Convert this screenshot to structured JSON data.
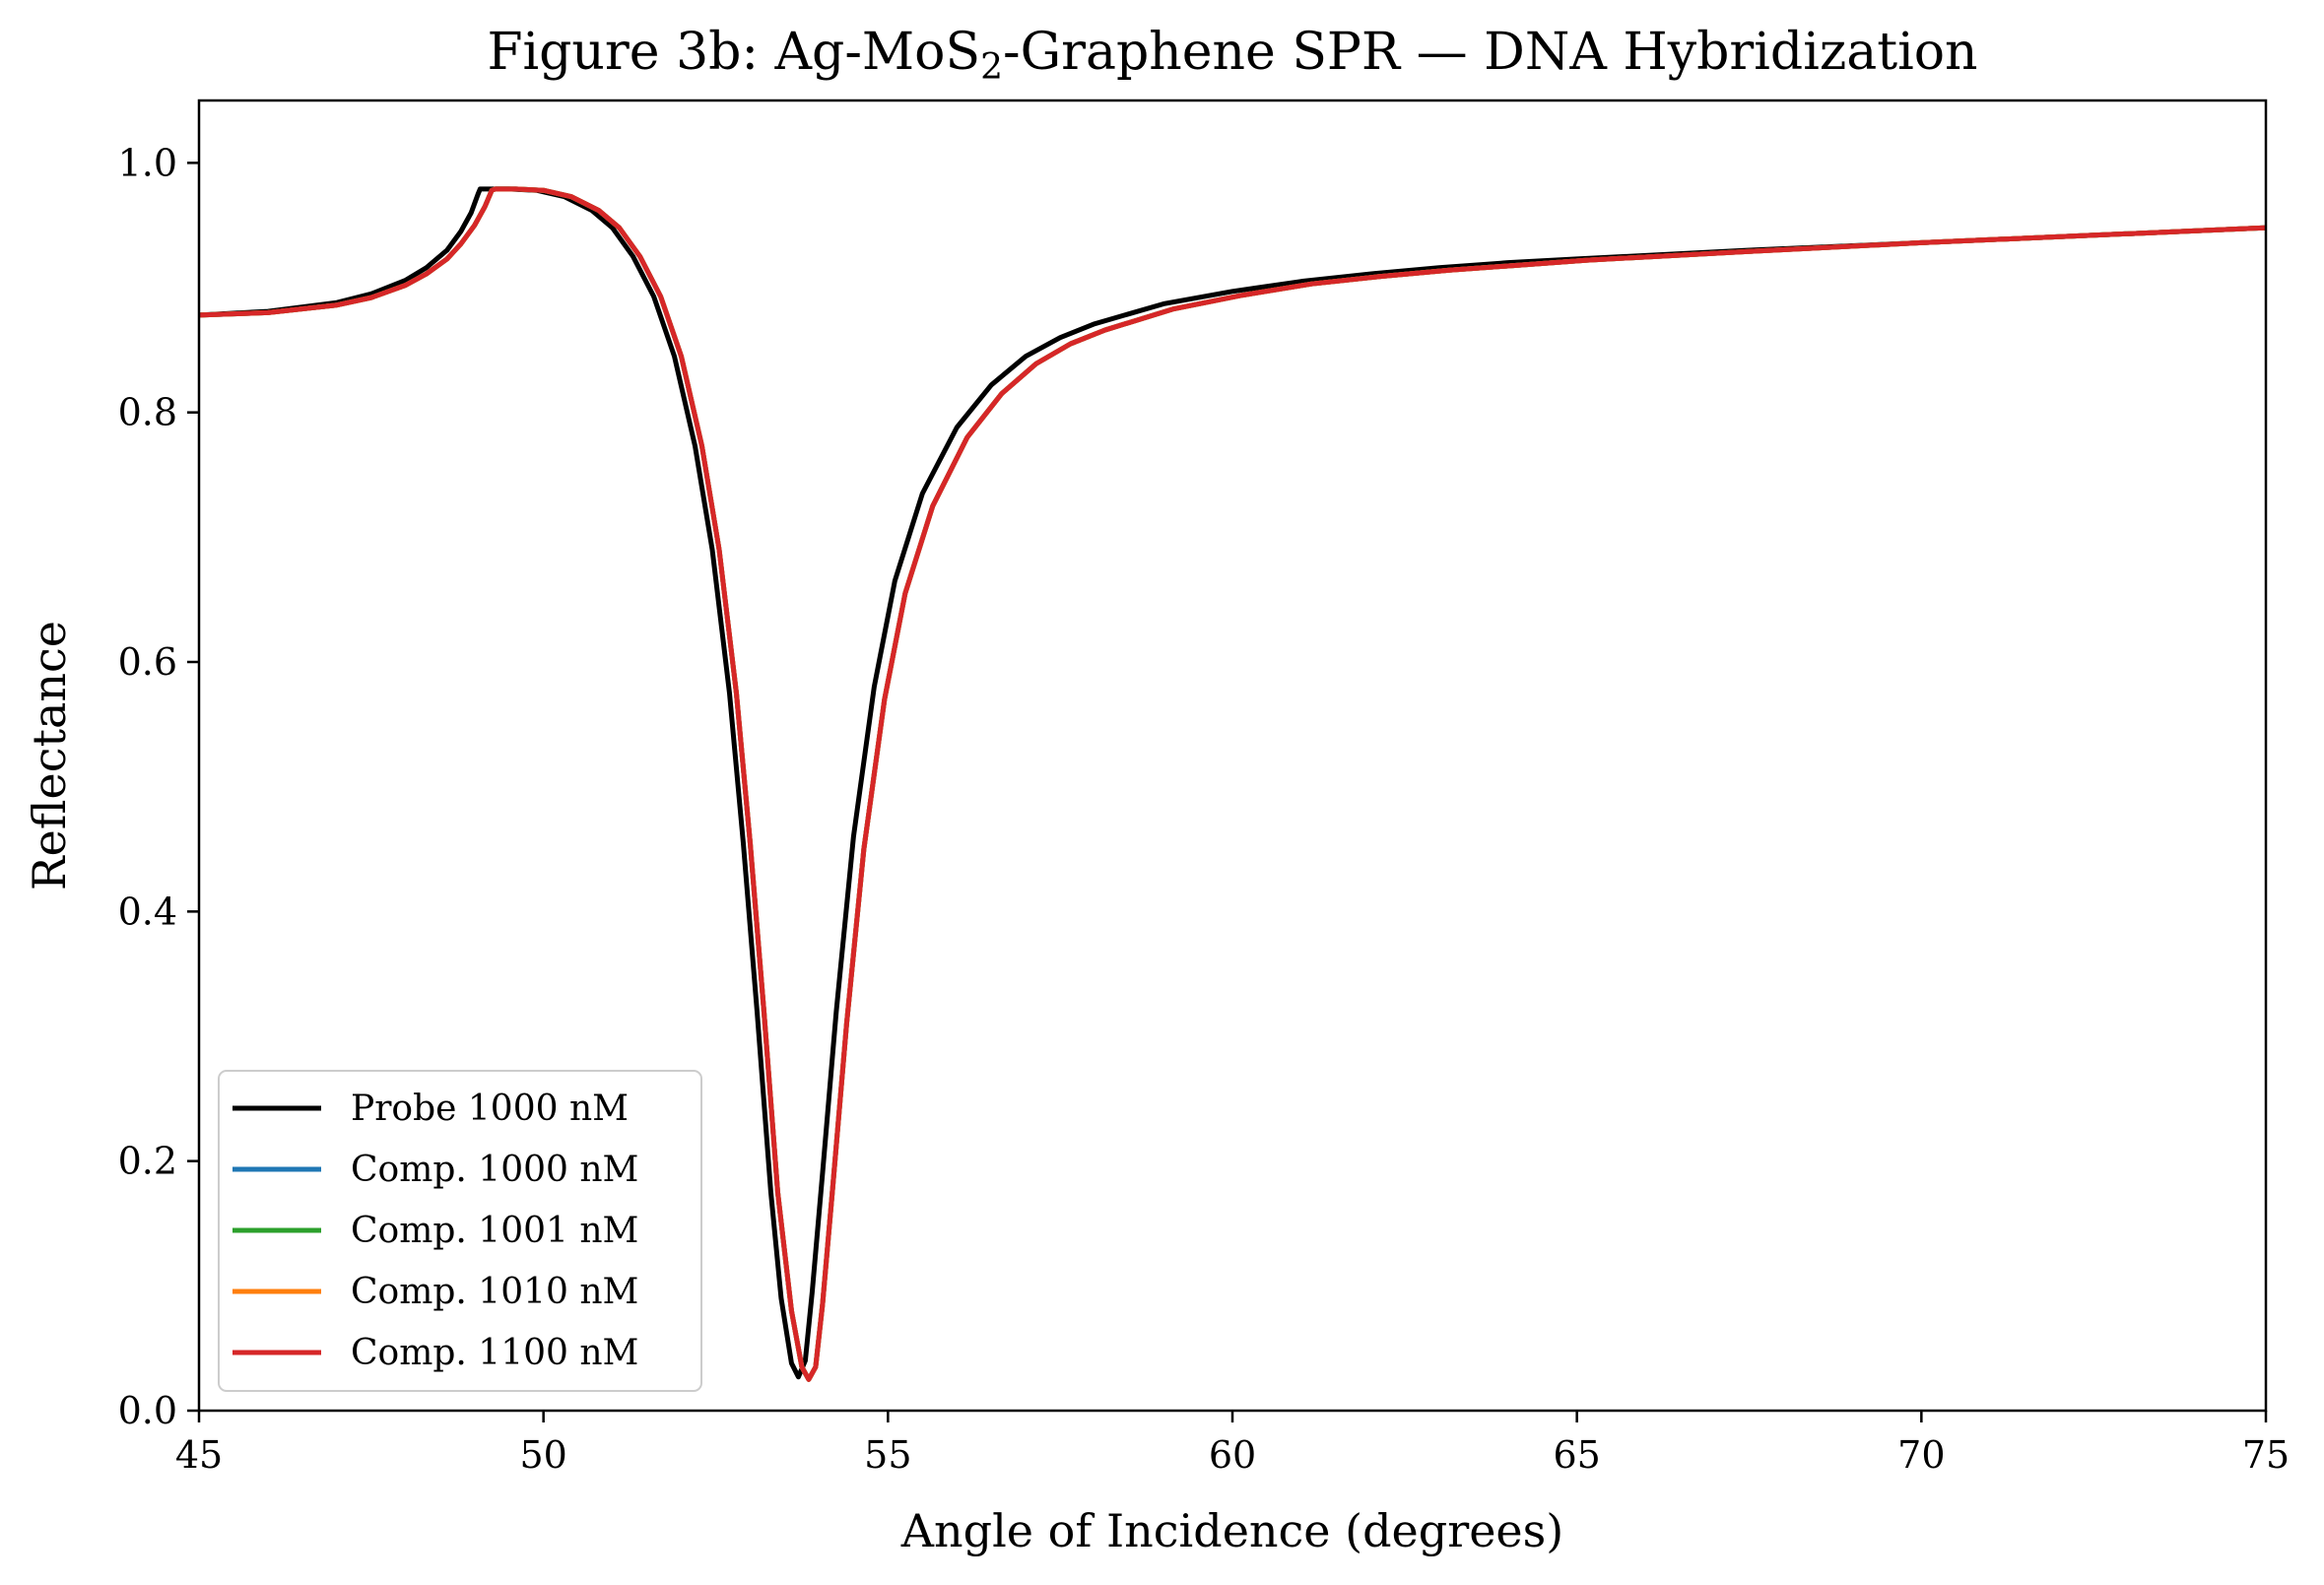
{
  "chart_data": {
    "type": "line",
    "title_main": "Figure 3b: Ag-MoS",
    "title_sub": "2",
    "title_rest": "-Graphene SPR — DNA Hybridization",
    "xlabel": "Angle of Incidence (degrees)",
    "ylabel": "Reflectance",
    "xlim": [
      45,
      75
    ],
    "ylim": [
      0,
      1.05
    ],
    "xticks": [
      45,
      50,
      55,
      60,
      65,
      70,
      75
    ],
    "yticks": [
      0.0,
      0.2,
      0.4,
      0.6,
      0.8,
      1.0
    ],
    "xtick_labels": [
      "45",
      "50",
      "55",
      "60",
      "65",
      "70",
      "75"
    ],
    "ytick_labels": [
      "0.0",
      "0.2",
      "0.4",
      "0.6",
      "0.8",
      "1.0"
    ],
    "grid": false,
    "legend_position": "lower-left",
    "series": [
      {
        "name": "Probe 1000 nM",
        "color": "#000000",
        "x": [
          45,
          46,
          47,
          47.5,
          48,
          48.3,
          48.6,
          48.8,
          48.95,
          49.05,
          49.08,
          49.2,
          49.5,
          49.9,
          50.3,
          50.7,
          51.0,
          51.3,
          51.6,
          51.9,
          52.2,
          52.45,
          52.7,
          52.9,
          53.1,
          53.3,
          53.45,
          53.6,
          53.7,
          53.8,
          53.9,
          54.05,
          54.25,
          54.5,
          54.8,
          55.1,
          55.5,
          56.0,
          56.5,
          57.0,
          57.5,
          58.0,
          59.0,
          60.0,
          61.0,
          62.0,
          63.0,
          64.0,
          65.0,
          67.5,
          70.0,
          72.5,
          75.0
        ],
        "y": [
          0.878,
          0.881,
          0.888,
          0.895,
          0.906,
          0.916,
          0.93,
          0.945,
          0.96,
          0.975,
          0.979,
          0.979,
          0.979,
          0.978,
          0.973,
          0.962,
          0.948,
          0.925,
          0.893,
          0.845,
          0.773,
          0.69,
          0.575,
          0.455,
          0.32,
          0.175,
          0.09,
          0.038,
          0.027,
          0.04,
          0.095,
          0.19,
          0.32,
          0.46,
          0.58,
          0.665,
          0.735,
          0.788,
          0.822,
          0.845,
          0.86,
          0.871,
          0.887,
          0.897,
          0.905,
          0.911,
          0.916,
          0.92,
          0.923,
          0.93,
          0.936,
          0.942,
          0.948
        ]
      },
      {
        "name": "Comp. 1000 nM",
        "color": "#1f77b4",
        "x": [
          45,
          46,
          47,
          47.5,
          48,
          48.3,
          48.6,
          48.8,
          49.0,
          49.15,
          49.25,
          49.3,
          49.6,
          50.0,
          50.4,
          50.8,
          51.1,
          51.4,
          51.7,
          52.0,
          52.3,
          52.55,
          52.8,
          53.0,
          53.2,
          53.4,
          53.6,
          53.75,
          53.85,
          53.95,
          54.05,
          54.2,
          54.4,
          54.65,
          54.95,
          55.25,
          55.65,
          56.15,
          56.65,
          57.15,
          57.65,
          58.15,
          59.15,
          60.15,
          61.15,
          62.15,
          63.15,
          64.15,
          65.15,
          67.5,
          70.0,
          72.5,
          75.0
        ],
        "y": [
          0.878,
          0.88,
          0.886,
          0.892,
          0.902,
          0.911,
          0.923,
          0.935,
          0.95,
          0.965,
          0.978,
          0.979,
          0.979,
          0.978,
          0.973,
          0.962,
          0.948,
          0.925,
          0.893,
          0.845,
          0.773,
          0.69,
          0.575,
          0.455,
          0.32,
          0.175,
          0.08,
          0.035,
          0.025,
          0.035,
          0.085,
          0.18,
          0.31,
          0.45,
          0.57,
          0.655,
          0.725,
          0.78,
          0.815,
          0.839,
          0.855,
          0.866,
          0.883,
          0.894,
          0.903,
          0.909,
          0.914,
          0.918,
          0.922,
          0.929,
          0.936,
          0.942,
          0.948
        ]
      },
      {
        "name": "Comp. 1001 nM",
        "color": "#2ca02c",
        "x": [
          45,
          46,
          47,
          47.5,
          48,
          48.3,
          48.6,
          48.8,
          49.0,
          49.15,
          49.25,
          49.3,
          49.6,
          50.0,
          50.4,
          50.8,
          51.1,
          51.4,
          51.7,
          52.0,
          52.3,
          52.55,
          52.8,
          53.0,
          53.2,
          53.4,
          53.6,
          53.75,
          53.85,
          53.95,
          54.05,
          54.2,
          54.4,
          54.65,
          54.95,
          55.25,
          55.65,
          56.15,
          56.65,
          57.15,
          57.65,
          58.15,
          59.15,
          60.15,
          61.15,
          62.15,
          63.15,
          64.15,
          65.15,
          67.5,
          70.0,
          72.5,
          75.0
        ],
        "y": [
          0.878,
          0.88,
          0.886,
          0.892,
          0.902,
          0.911,
          0.923,
          0.935,
          0.95,
          0.965,
          0.978,
          0.979,
          0.979,
          0.978,
          0.973,
          0.962,
          0.948,
          0.925,
          0.893,
          0.845,
          0.773,
          0.69,
          0.575,
          0.455,
          0.32,
          0.175,
          0.08,
          0.035,
          0.025,
          0.035,
          0.085,
          0.18,
          0.31,
          0.45,
          0.57,
          0.655,
          0.725,
          0.78,
          0.815,
          0.839,
          0.855,
          0.866,
          0.883,
          0.894,
          0.903,
          0.909,
          0.914,
          0.918,
          0.922,
          0.929,
          0.936,
          0.942,
          0.948
        ]
      },
      {
        "name": "Comp. 1010 nM",
        "color": "#ff7f0e",
        "x": [
          45,
          46,
          47,
          47.5,
          48,
          48.3,
          48.6,
          48.8,
          49.0,
          49.15,
          49.25,
          49.3,
          49.6,
          50.0,
          50.4,
          50.8,
          51.1,
          51.4,
          51.7,
          52.0,
          52.3,
          52.55,
          52.8,
          53.0,
          53.2,
          53.4,
          53.6,
          53.75,
          53.85,
          53.95,
          54.05,
          54.2,
          54.4,
          54.65,
          54.95,
          55.25,
          55.65,
          56.15,
          56.65,
          57.15,
          57.65,
          58.15,
          59.15,
          60.15,
          61.15,
          62.15,
          63.15,
          64.15,
          65.15,
          67.5,
          70.0,
          72.5,
          75.0
        ],
        "y": [
          0.878,
          0.88,
          0.886,
          0.892,
          0.902,
          0.911,
          0.923,
          0.935,
          0.95,
          0.965,
          0.978,
          0.979,
          0.979,
          0.978,
          0.973,
          0.962,
          0.948,
          0.925,
          0.893,
          0.845,
          0.773,
          0.69,
          0.575,
          0.455,
          0.32,
          0.175,
          0.08,
          0.035,
          0.025,
          0.035,
          0.085,
          0.18,
          0.31,
          0.45,
          0.57,
          0.655,
          0.725,
          0.78,
          0.815,
          0.839,
          0.855,
          0.866,
          0.883,
          0.894,
          0.903,
          0.909,
          0.914,
          0.918,
          0.922,
          0.929,
          0.936,
          0.942,
          0.948
        ]
      },
      {
        "name": "Comp. 1100 nM",
        "color": "#d62728",
        "x": [
          45,
          46,
          47,
          47.5,
          48,
          48.3,
          48.6,
          48.8,
          49.0,
          49.15,
          49.25,
          49.3,
          49.6,
          50.0,
          50.4,
          50.8,
          51.1,
          51.4,
          51.7,
          52.0,
          52.3,
          52.55,
          52.8,
          53.0,
          53.2,
          53.4,
          53.6,
          53.75,
          53.85,
          53.95,
          54.05,
          54.2,
          54.4,
          54.65,
          54.95,
          55.25,
          55.65,
          56.15,
          56.65,
          57.15,
          57.65,
          58.15,
          59.15,
          60.15,
          61.15,
          62.15,
          63.15,
          64.15,
          65.15,
          67.5,
          70.0,
          72.5,
          75.0
        ],
        "y": [
          0.878,
          0.88,
          0.886,
          0.892,
          0.902,
          0.911,
          0.923,
          0.935,
          0.95,
          0.965,
          0.978,
          0.979,
          0.979,
          0.978,
          0.973,
          0.962,
          0.948,
          0.925,
          0.893,
          0.845,
          0.773,
          0.69,
          0.575,
          0.455,
          0.32,
          0.175,
          0.08,
          0.035,
          0.025,
          0.035,
          0.085,
          0.18,
          0.31,
          0.45,
          0.57,
          0.655,
          0.725,
          0.78,
          0.815,
          0.839,
          0.855,
          0.866,
          0.883,
          0.894,
          0.903,
          0.909,
          0.914,
          0.918,
          0.922,
          0.929,
          0.936,
          0.942,
          0.948
        ]
      }
    ]
  }
}
